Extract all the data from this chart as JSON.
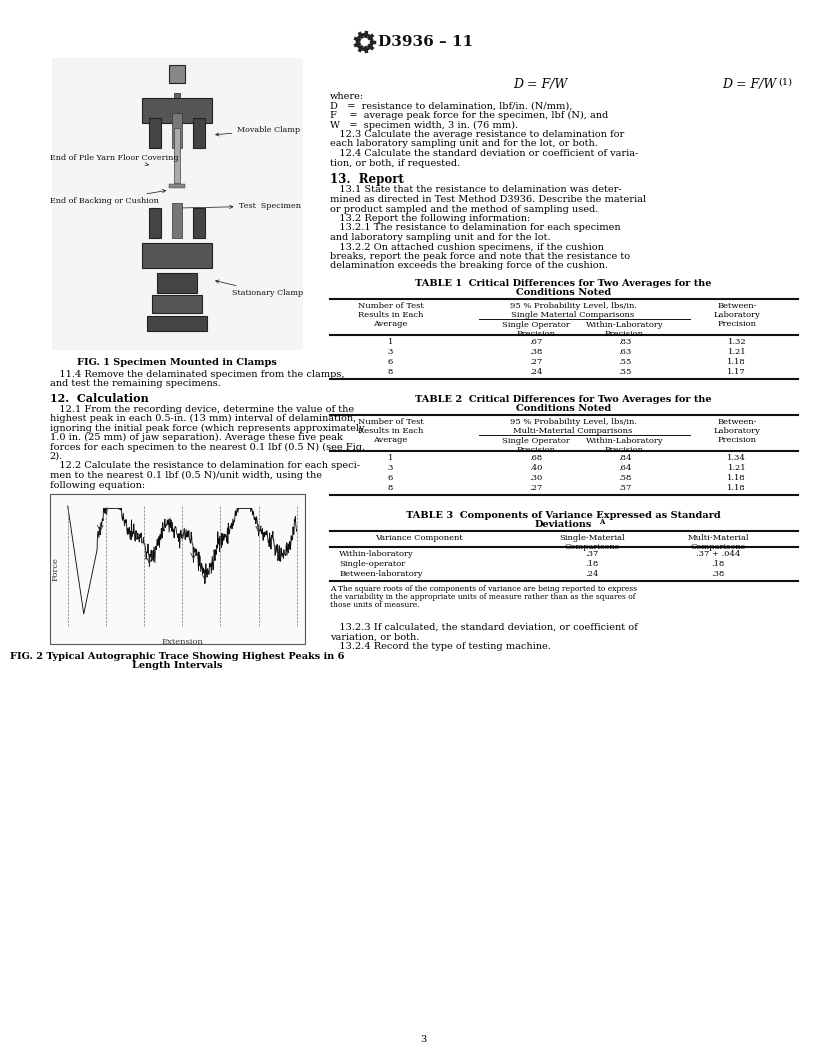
{
  "title": "D3936 – 11",
  "bg_color": "#ffffff",
  "text_color": "#111111",
  "page_number": "3",
  "right_col": {
    "equation": "D = F/W",
    "eq_number": "(1)",
    "where_lines": [
      "where:",
      "D   =  resistance to delamination, lbf/in. (N/mm),",
      "F    =  average peak force for the specimen, lbf (N), and",
      "W   =  specimen width, 3 in. (76 mm).",
      "   12.3 Calculate the average resistance to delamination for",
      "each laboratory sampling unit and for the lot, or both.",
      "   12.4 Calculate the standard deviation or coefficient of varia-",
      "tion, or both, if requested."
    ],
    "section13_title": "13.  Report",
    "section13_lines": [
      "   13.1 State that the resistance to delamination was deter-",
      "mined as directed in Test Method D3936. Describe the material",
      "or product sampled and the method of sampling used.",
      "   13.2 Report the following information:",
      "   13.2.1 The resistance to delamination for each specimen",
      "and laboratory sampling unit and for the lot.",
      "   13.2.2 On attached cushion specimens, if the cushion",
      "breaks, report the peak force and note that the resistance to",
      "delamination exceeds the breaking force of the cushion."
    ]
  },
  "left_col": {
    "fig1_caption": "FIG. 1 Specimen Mounted in Clamps",
    "section11_lines": [
      "   11.4 Remove the delaminated specimen from the clamps,",
      "and test the remaining specimens."
    ],
    "section12_title": "12.  Calculation",
    "section12_lines": [
      "   12.1 From the recording device, determine the value of the",
      "highest peak in each 0.5-in. (13 mm) interval of delamination,",
      "ignoring the initial peak force (which represents approximately",
      "1.0 in. (25 mm) of jaw separation). Average these five peak",
      "forces for each specimen to the nearest 0.1 lbf (0.5 N) (see Fig.",
      "2).",
      "   12.2 Calculate the resistance to delamination for each speci-",
      "men to the nearest 0.1 lbf (0.5 N)/unit width, using the",
      "following equation:"
    ],
    "fig2_caption1": "FIG. 2 Typical Autographic Trace Showing Highest Peaks in 6",
    "fig2_caption2": "Length Intervals"
  },
  "table1": {
    "title_line1": "TABLE 1  Critical Differences for Two Averages for the",
    "title_line2": "Conditions Noted",
    "col1_h1": "Number of Test",
    "col1_h2": "Results in Each",
    "col1_h3": "Average",
    "col2_span": "95 % Probability Level, lbs/in.",
    "col2_sub": "Single Material Comparisons",
    "col2a_h1": "Single Operator",
    "col2a_h2": "Precision",
    "col2b_h1": "Within-Laboratory",
    "col2b_h2": "Precision",
    "col3_h1": "Between-",
    "col3_h2": "Laboratory",
    "col3_h3": "Precision",
    "rows": [
      [
        "1",
        ".67",
        ".83",
        "1.32"
      ],
      [
        "3",
        ".38",
        ".63",
        "1.21"
      ],
      [
        "6",
        ".27",
        ".55",
        "1.18"
      ],
      [
        "8",
        ".24",
        ".55",
        "1.17"
      ]
    ]
  },
  "table2": {
    "title_line1": "TABLE 2  Critical Differences for Two Averages for the",
    "title_line2": "Conditions Noted",
    "col1_h1": "Number of Test",
    "col1_h2": "Results in Each",
    "col1_h3": "Average",
    "col2_span": "95 % Probability Level, lbs/in.",
    "col2_sub": "Multi-Material Comparisons",
    "col2a_h1": "Single Operator",
    "col2a_h2": "Precision",
    "col2b_h1": "Within-Laboratory",
    "col2b_h2": "Precision",
    "col3_h1": "Between-",
    "col3_h2": "Laboratory",
    "col3_h3": "Precision",
    "rows": [
      [
        "1",
        ".68",
        ".84",
        "1.34"
      ],
      [
        "3",
        ".40",
        ".64",
        "1.21"
      ],
      [
        "6",
        ".30",
        ".58",
        "1.18"
      ],
      [
        "8",
        ".27",
        ".57",
        "1.18"
      ]
    ]
  },
  "table3": {
    "title_line1": "TABLE 3  Components of Variance Expressed as Standard",
    "title_line2": "Deviations",
    "title_footnote": "A",
    "col1_h": "Variance Component",
    "col2_h1": "Single-Material",
    "col2_h2": "Comparisons",
    "col3_h1": "Multi-Material",
    "col3_h2": "Comparisons",
    "rows": [
      [
        "Within-laboratory",
        ".37",
        ".37 + .044"
      ],
      [
        "Single-operator",
        ".18",
        ".18"
      ],
      [
        "Between-laboratory",
        ".24",
        ".38"
      ]
    ],
    "footnote_line1": "A The square roots of the components of variance are being reported to express",
    "footnote_line2": "the variability in the appropriate units of measure rather than as the squares of",
    "footnote_line3": "those units of measure."
  },
  "bottom_lines": [
    "   13.2.3 If calculated, the standard deviation, or coefficient of",
    "variation, or both.",
    "   13.2.4 Record the type of testing machine."
  ]
}
